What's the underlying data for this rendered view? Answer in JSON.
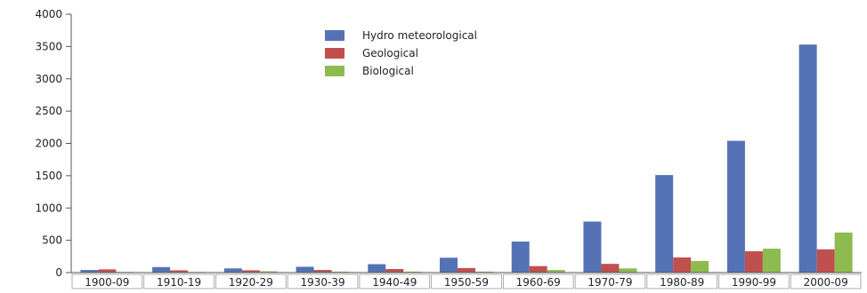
{
  "chart_data": {
    "type": "bar",
    "title": "",
    "xlabel": "",
    "ylabel": "",
    "ylim": [
      0,
      4000
    ],
    "yticks": [
      0,
      500,
      1000,
      1500,
      2000,
      2500,
      3000,
      3500,
      4000
    ],
    "grid": false,
    "legend_position": "top-center",
    "categories": [
      "1900-09",
      "1910-19",
      "1920-29",
      "1930-39",
      "1940-49",
      "1950-59",
      "1960-69",
      "1970-79",
      "1980-89",
      "1990-99",
      "2000-09"
    ],
    "series": [
      {
        "name": "Hydro meteorological",
        "color": "#5572b5",
        "values": [
          40,
          85,
          65,
          90,
          130,
          230,
          480,
          790,
          1510,
          2040,
          3530
        ]
      },
      {
        "name": "Geological",
        "color": "#c0504d",
        "values": [
          50,
          35,
          35,
          40,
          55,
          70,
          100,
          135,
          235,
          330,
          360
        ]
      },
      {
        "name": "Biological",
        "color": "#8dbb4f",
        "values": [
          10,
          10,
          20,
          15,
          15,
          15,
          40,
          65,
          180,
          370,
          620
        ]
      }
    ]
  }
}
